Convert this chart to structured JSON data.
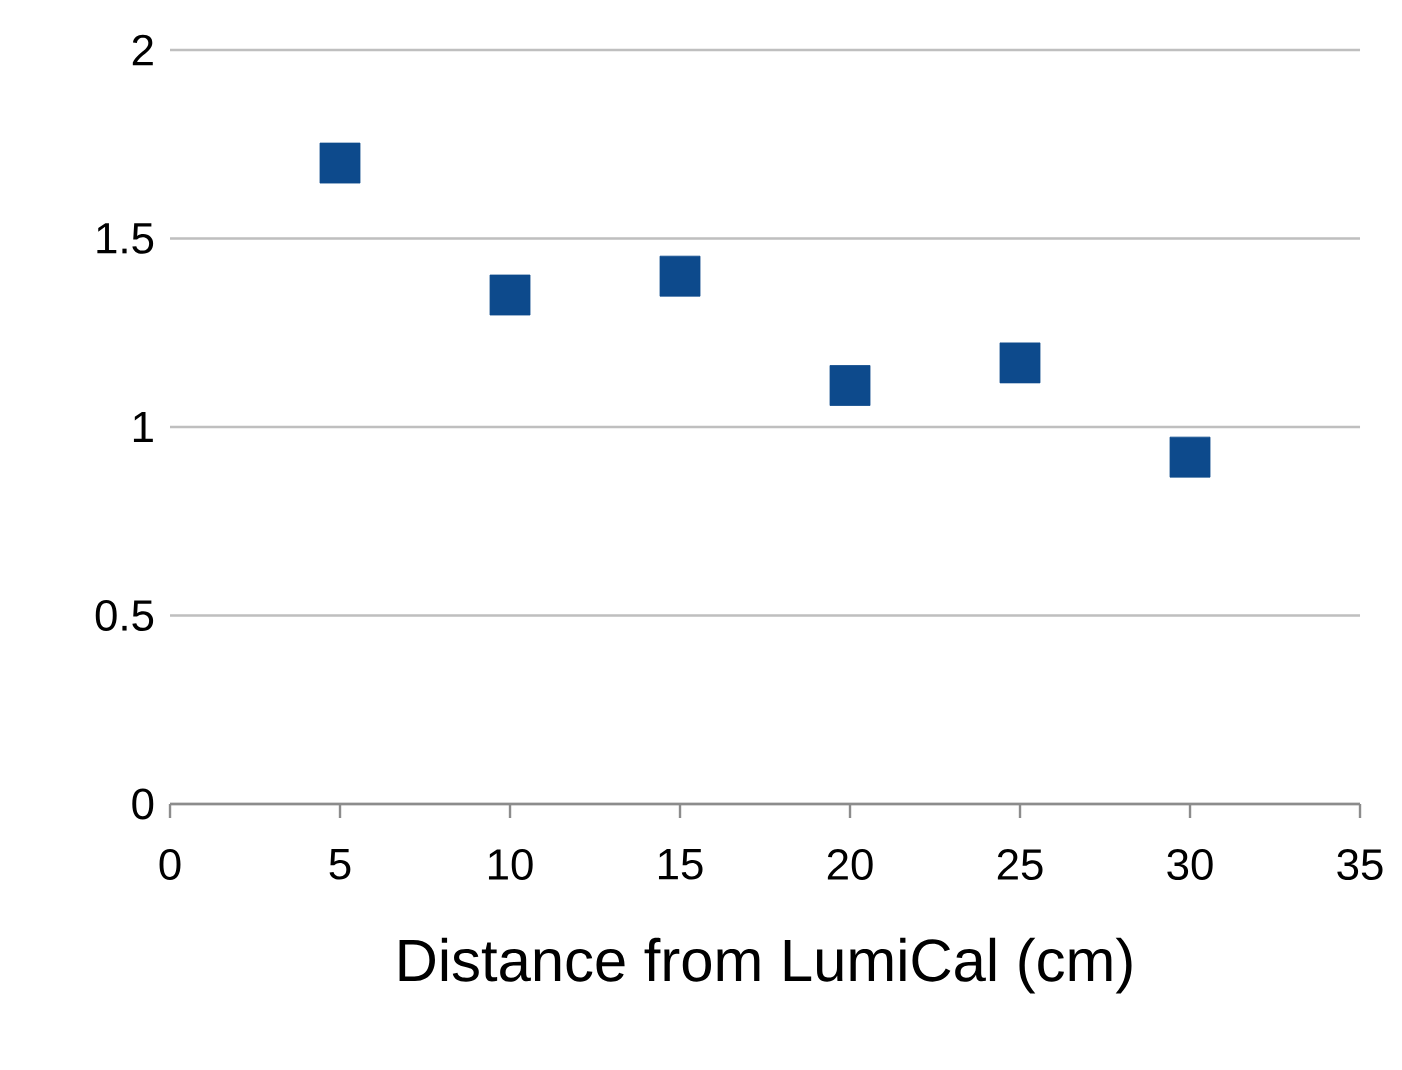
{
  "chart_data": {
    "type": "scatter",
    "xlabel": "Distance from LumiCal (cm)",
    "x": [
      5,
      10,
      15,
      20,
      25,
      30
    ],
    "series": [
      {
        "color": "#0d4a8c",
        "values": [
          1.7,
          1.35,
          1.4,
          1.11,
          1.17,
          0.92
        ]
      }
    ],
    "xlim": [
      0,
      35
    ],
    "xticks": [
      0,
      5,
      10,
      15,
      20,
      25,
      30,
      35
    ],
    "ylim": [
      0,
      2
    ],
    "yticks": [
      0,
      0.5,
      1,
      1.5,
      2
    ],
    "grid": "y",
    "marker": "square"
  }
}
